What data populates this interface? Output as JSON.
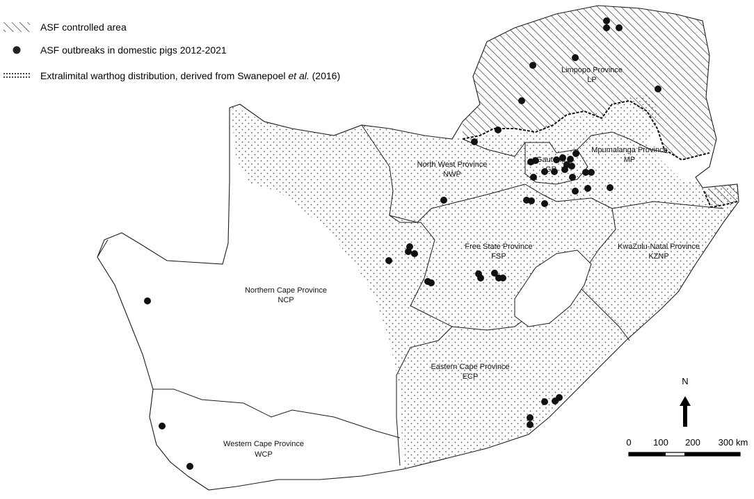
{
  "legend": {
    "controlled_area": "ASF controlled area",
    "outbreaks": "ASF outbreaks in domestic pigs 2012-2021",
    "warthog_prefix": "Extralimital warthog distribution, derived from Swanepoel ",
    "warthog_italic": "et al.",
    "warthog_suffix": " (2016)"
  },
  "provinces": [
    {
      "key": "lp",
      "name": "Limpopo Province",
      "abbr": "LP"
    },
    {
      "key": "mp",
      "name": "Mpumalanga Province",
      "abbr": "MP"
    },
    {
      "key": "gp",
      "name": "Gauteng",
      "abbr": "GP"
    },
    {
      "key": "nwp",
      "name": "North West Province",
      "abbr": "NWP"
    },
    {
      "key": "fsp",
      "name": "Free State Province",
      "abbr": "FSP"
    },
    {
      "key": "kznp",
      "name": "KwaZulu-Natal Province",
      "abbr": "KZNP"
    },
    {
      "key": "ncp",
      "name": "Northern Cape Province",
      "abbr": "NCP"
    },
    {
      "key": "ecp",
      "name": "Eastern Cape Province",
      "abbr": "ECP"
    },
    {
      "key": "wcp",
      "name": "Western Cape Province",
      "abbr": "WCP"
    }
  ],
  "north_arrow": {
    "label": "N"
  },
  "scale_bar": {
    "ticks": [
      "0",
      "100",
      "200",
      "300 km"
    ]
  },
  "colors": {
    "outbreak": "#111111",
    "boundary": "#1a1a1a",
    "stipple": "#555555"
  },
  "outbreak_points": [
    "LP-1",
    "LP-2",
    "LP-3",
    "LP-4",
    "LP-5",
    "LP-6",
    "LP-7",
    "LP-8",
    "LP-9",
    "NWP-1",
    "NWP-2",
    "NWP-3",
    "NWP-4",
    "NWP-5",
    "GP-1",
    "GP-2",
    "GP-3",
    "GP-4",
    "GP-5",
    "GP-6",
    "GP-7",
    "GP-8",
    "GP-9",
    "GP-10",
    "GP-11",
    "MP-1",
    "MP-2",
    "MP-3",
    "MP-4",
    "MP-5",
    "MP-6",
    "FSP-1",
    "FSP-2",
    "FSP-3",
    "FSP-4",
    "FSP-5",
    "FSP-6",
    "FSP-7",
    "FSP-8",
    "FSP-9",
    "FSP-10",
    "FSP-11",
    "NCP-1",
    "ECP-1",
    "ECP-2",
    "ECP-3",
    "ECP-4",
    "ECP-5",
    "WCP-1",
    "WCP-2"
  ]
}
